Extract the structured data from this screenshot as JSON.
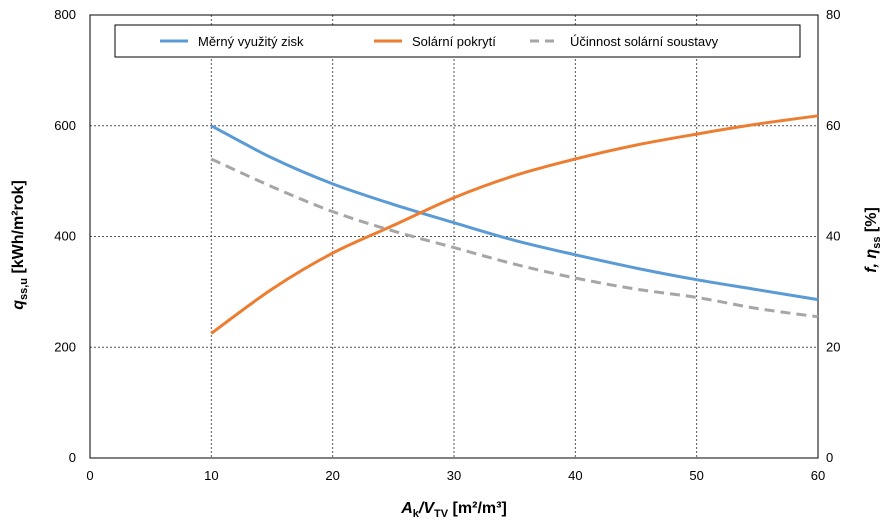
{
  "chart_data": {
    "type": "line",
    "x": [
      10,
      20,
      30,
      40,
      50,
      60
    ],
    "series": [
      {
        "name": "Měrný využitý zisk",
        "axis": "left",
        "color": "#5B9BD5",
        "dash": "solid",
        "x": [
          10,
          15,
          20,
          25,
          30,
          35,
          40,
          45,
          50,
          55,
          60
        ],
        "values": [
          600,
          542,
          495,
          458,
          425,
          393,
          367,
          343,
          322,
          304,
          286
        ]
      },
      {
        "name": "Solární pokrytí",
        "axis": "right",
        "color": "#ED7D31",
        "dash": "solid",
        "x": [
          10,
          15,
          20,
          25,
          30,
          35,
          40,
          45,
          50,
          55,
          60
        ],
        "values": [
          22.5,
          30.5,
          37,
          42,
          47,
          51,
          54,
          56.5,
          58.5,
          60.3,
          61.8
        ]
      },
      {
        "name": "Účinnost solární soustavy",
        "axis": "right",
        "color": "#A6A6A6",
        "dash": "dashed",
        "x": [
          10,
          15,
          20,
          25,
          30,
          35,
          40,
          45,
          50,
          55,
          60
        ],
        "values": [
          54,
          49,
          44.5,
          41,
          38,
          35,
          32.5,
          30.5,
          29,
          27,
          25.5
        ]
      }
    ],
    "xlim": [
      0,
      60
    ],
    "xticks": [
      0,
      10,
      20,
      30,
      40,
      50,
      60
    ],
    "ylim_left": [
      0,
      800
    ],
    "yticks_left": [
      0,
      200,
      400,
      600,
      800
    ],
    "ylim_right": [
      0,
      80
    ],
    "yticks_right": [
      0,
      20,
      40,
      60,
      80
    ],
    "xlabel": {
      "main": "A",
      "sub1": "k",
      "mid": "/V",
      "sub2": "TV",
      "unit": " [m²/m³]"
    },
    "ylabel_left": {
      "main": "q",
      "sub": "ss,u",
      "unit": " [kWh/m²rok]"
    },
    "ylabel_right": {
      "main": "f, η",
      "sub": "ss",
      "unit": " [%]"
    },
    "grid": true,
    "legend_position": "top"
  }
}
